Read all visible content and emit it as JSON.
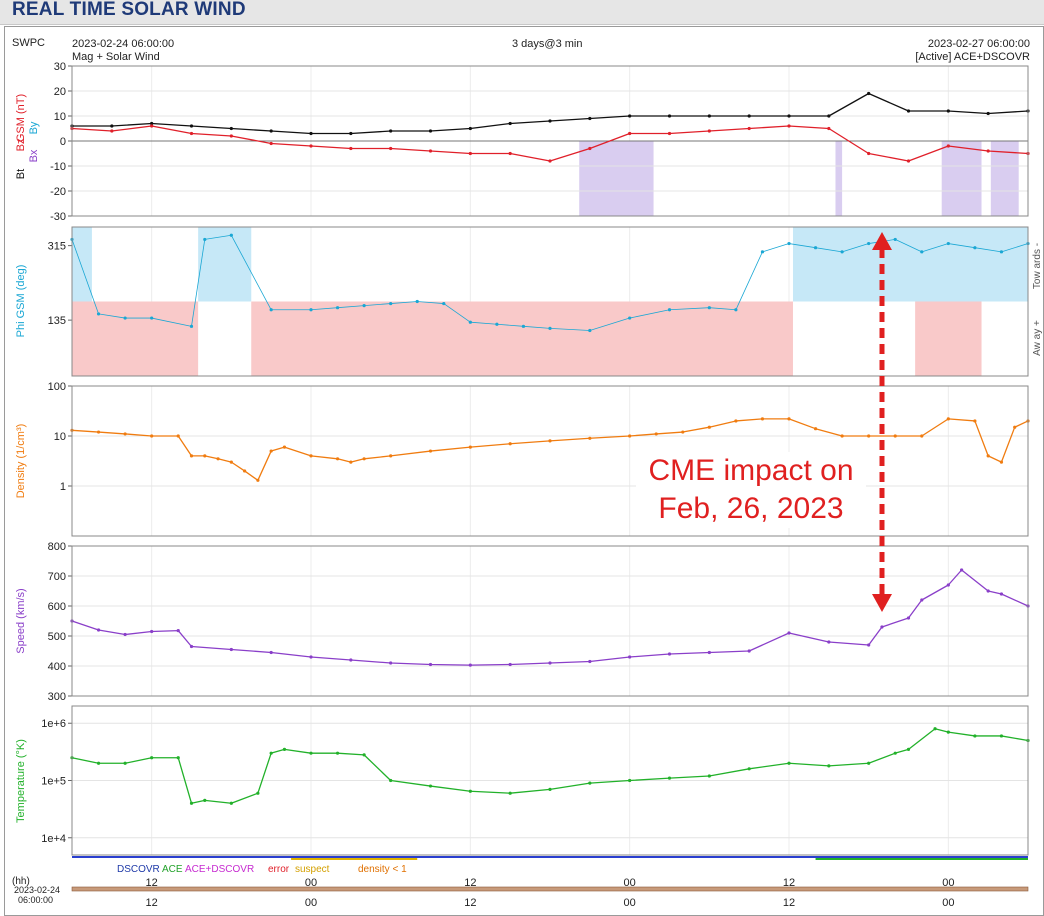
{
  "page": {
    "title": "REAL TIME SOLAR WIND",
    "source": "SWPC",
    "start_time": "2023-02-24 06:00:00",
    "end_time": "2023-02-27 06:00:00",
    "span": "3 days@3 min",
    "subtitle_left": "Mag + Solar Wind",
    "subtitle_right": "[Active] ACE+DSCOVR",
    "annotation_line1": "CME impact on",
    "annotation_line2": "Feb, 26, 2023",
    "hh_label": "(hh)",
    "bottom_date": "2023-02-24",
    "bottom_time": "06:00:00"
  },
  "legend": {
    "dscovr": "DSCOVR",
    "ace": "ACE",
    "ace_dscovr": "ACE+DSCOVR",
    "error": "error",
    "suspect": "suspect",
    "density": "density < 1"
  },
  "colors": {
    "title": "#1f3a78",
    "bt": "#111111",
    "bz": "#e0202a",
    "bz_neg_fill": "#d9cdf0",
    "phi": "#1aa7d4",
    "phi_toward_fill": "#c6e8f7",
    "phi_away_fill": "#f9c9c9",
    "density": "#f07c10",
    "speed": "#8a3fc9",
    "temperature": "#22b12a",
    "annotation": "#e02020"
  },
  "chart_data": [
    {
      "type": "line",
      "ylabel_parts": [
        "Bt",
        "Bz",
        "GSM (nT)",
        "Bx",
        "By"
      ],
      "ylim": [
        -30,
        30
      ],
      "yticks": [
        "30",
        "20",
        "10",
        "0",
        "-10",
        "-20",
        "-30"
      ],
      "x_hours": [
        0,
        3,
        6,
        9,
        12,
        15,
        18,
        21,
        24,
        27,
        30,
        33,
        36,
        39,
        42,
        45,
        48,
        51,
        54,
        57,
        60,
        63,
        66,
        69,
        72
      ],
      "series": [
        {
          "name": "Bt",
          "values": [
            6,
            6,
            7,
            6,
            5,
            4,
            3,
            3,
            4,
            4,
            5,
            7,
            8,
            9,
            10,
            10,
            10,
            10,
            10,
            10,
            19,
            12,
            12,
            11,
            12
          ]
        },
        {
          "name": "Bz",
          "values": [
            5,
            4,
            6,
            3,
            2,
            -1,
            -2,
            -3,
            -3,
            -4,
            -5,
            -5,
            -8,
            -3,
            3,
            3,
            4,
            5,
            6,
            5,
            -5,
            -8,
            -2,
            -4,
            -5
          ]
        }
      ],
      "negative_bz_bands_hours": [
        [
          38.2,
          43.8
        ],
        [
          57.5,
          58.0
        ],
        [
          65.5,
          68.5
        ],
        [
          69.2,
          71.3
        ]
      ]
    },
    {
      "type": "scatter",
      "ylabel": "Phi GSM (deg)",
      "yticks": [
        "315",
        "135"
      ],
      "right_labels": [
        "Tow ards -",
        "Aw ay +"
      ],
      "x_hours": [
        0,
        2,
        4,
        6,
        9,
        10,
        12,
        15,
        18,
        20,
        22,
        24,
        26,
        28,
        30,
        32,
        34,
        36,
        39,
        42,
        45,
        48,
        50,
        52,
        54,
        56,
        58,
        60,
        62,
        64,
        66,
        68,
        70,
        72
      ],
      "values": [
        330,
        150,
        140,
        140,
        120,
        330,
        340,
        160,
        160,
        165,
        170,
        175,
        180,
        175,
        130,
        125,
        120,
        115,
        110,
        140,
        160,
        165,
        160,
        300,
        320,
        310,
        300,
        320,
        330,
        300,
        320,
        310,
        300,
        320
      ],
      "toward_bands_hours": [
        [
          0,
          1.5
        ],
        [
          9.5,
          13.5
        ],
        [
          54.3,
          75
        ]
      ],
      "away_bands_hours": [
        [
          0,
          9.5
        ],
        [
          13.5,
          54.3
        ],
        [
          63.5,
          68.5
        ]
      ]
    },
    {
      "type": "line",
      "ylabel": "Density (1/cm³)",
      "scale": "log",
      "ylim": [
        0.1,
        100
      ],
      "yticks": [
        "100",
        "10",
        "1"
      ],
      "x_hours": [
        0,
        2,
        4,
        6,
        8,
        9,
        10,
        11,
        12,
        13,
        14,
        15,
        16,
        18,
        20,
        21,
        22,
        24,
        27,
        30,
        33,
        36,
        39,
        42,
        44,
        46,
        48,
        50,
        52,
        54,
        56,
        58,
        60,
        62,
        64,
        66,
        68,
        69,
        70,
        71,
        72
      ],
      "values": [
        13,
        12,
        11,
        10,
        10,
        4,
        4,
        3.5,
        3,
        2,
        1.3,
        5,
        6,
        4,
        3.5,
        3,
        3.5,
        4,
        5,
        6,
        7,
        8,
        9,
        10,
        11,
        12,
        15,
        20,
        22,
        22,
        14,
        10,
        10,
        10,
        10,
        22,
        20,
        4,
        3,
        15,
        20
      ]
    },
    {
      "type": "line",
      "ylabel": "Speed (km/s)",
      "ylim": [
        300,
        800
      ],
      "yticks": [
        "800",
        "700",
        "600",
        "500",
        "400",
        "300"
      ],
      "x_hours": [
        0,
        2,
        4,
        6,
        8,
        9,
        12,
        15,
        18,
        21,
        24,
        27,
        30,
        33,
        36,
        39,
        42,
        45,
        48,
        51,
        54,
        57,
        60,
        61,
        63,
        64,
        66,
        67,
        69,
        70,
        72
      ],
      "values": [
        550,
        520,
        505,
        515,
        518,
        465,
        455,
        445,
        430,
        420,
        410,
        405,
        403,
        405,
        410,
        415,
        430,
        440,
        445,
        450,
        510,
        480,
        470,
        530,
        560,
        620,
        670,
        720,
        650,
        640,
        600
      ]
    },
    {
      "type": "line",
      "ylabel": "Temperature (°K)",
      "scale": "log",
      "ylim": [
        5000,
        2000000
      ],
      "yticks": [
        "1e+6",
        "1e+5",
        "1e+4"
      ],
      "x_hours": [
        0,
        2,
        4,
        6,
        8,
        9,
        10,
        12,
        14,
        15,
        16,
        18,
        20,
        22,
        24,
        27,
        30,
        33,
        36,
        39,
        42,
        45,
        48,
        51,
        54,
        57,
        60,
        62,
        63,
        65,
        66,
        68,
        70,
        72
      ],
      "values": [
        250000,
        200000,
        200000,
        250000,
        250000,
        40000,
        45000,
        40000,
        60000,
        300000,
        350000,
        300000,
        300000,
        280000,
        100000,
        80000,
        65000,
        60000,
        70000,
        90000,
        100000,
        110000,
        120000,
        160000,
        200000,
        180000,
        200000,
        300000,
        350000,
        800000,
        700000,
        600000,
        600000,
        500000
      ]
    }
  ],
  "x_axis": {
    "top_tick_labels": [
      "12",
      "00",
      "12",
      "00",
      "12",
      "00"
    ],
    "bottom_tick_labels": [
      "12",
      "00",
      "12",
      "00",
      "12",
      "00"
    ],
    "tick_hours": [
      6,
      18,
      30,
      42,
      54,
      66
    ]
  }
}
